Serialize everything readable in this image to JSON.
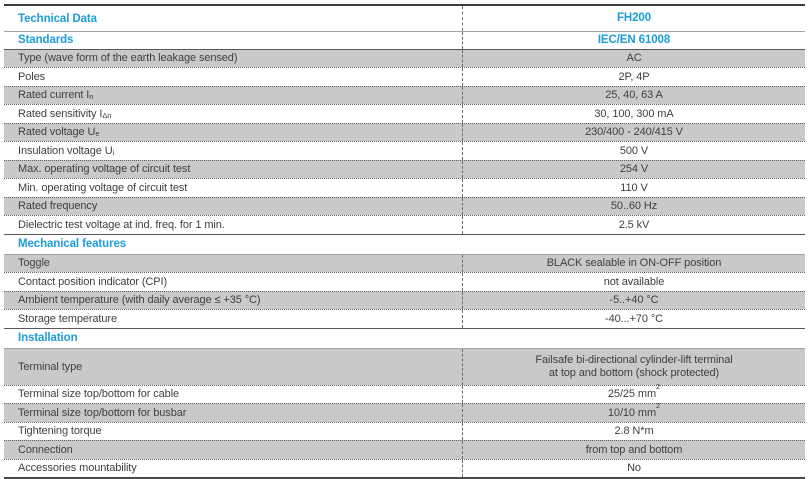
{
  "colors": {
    "accent_blue": "#1a9cd8",
    "row_gray": "#c9c9c9",
    "text": "#3f3f3f"
  },
  "table": {
    "rows": [
      {
        "kind": "title",
        "label": "Technical Data",
        "value": "FH200",
        "shade": "white"
      },
      {
        "kind": "title",
        "label": "Standards",
        "value": "IEC/EN 61008",
        "shade": "white"
      },
      {
        "kind": "data",
        "label": "Type (wave form of the earth leakage sensed)",
        "value": "AC",
        "shade": "gray"
      },
      {
        "kind": "data",
        "label": "Poles",
        "value": "2P, 4P",
        "shade": "white"
      },
      {
        "kind": "data",
        "label": "Rated current I",
        "label_sub": "n",
        "value": "25, 40, 63 A",
        "shade": "gray"
      },
      {
        "kind": "data",
        "label": "Rated sensitivity I",
        "label_sub": "Δn",
        "value": "30, 100, 300 mA",
        "shade": "white"
      },
      {
        "kind": "data",
        "label": "Rated voltage U",
        "label_sub": "e",
        "value": "230/400 - 240/415 V",
        "shade": "gray"
      },
      {
        "kind": "data",
        "label": "Insulation voltage U",
        "label_sub": "i",
        "value": "500 V",
        "shade": "white"
      },
      {
        "kind": "data",
        "label": "Max. operating voltage of circuit test",
        "value": "254 V",
        "shade": "gray"
      },
      {
        "kind": "data",
        "label": "Min. operating voltage of circuit test",
        "value": "110 V",
        "shade": "white"
      },
      {
        "kind": "data",
        "label": "Rated frequency",
        "value": "50..60 Hz",
        "shade": "gray"
      },
      {
        "kind": "data",
        "label": "Dielectric test voltage at ind. freq. for 1 min.",
        "value": "2.5 kV",
        "shade": "white"
      },
      {
        "kind": "section",
        "label": "Mechanical features",
        "shade": "white"
      },
      {
        "kind": "data",
        "label": "Toggle",
        "value": "BLACK sealable in ON-OFF position",
        "shade": "gray"
      },
      {
        "kind": "data",
        "label": "Contact position indicator (CPI)",
        "value": "not available",
        "shade": "white"
      },
      {
        "kind": "data",
        "label": "Ambient temperature (with daily average ≤ +35 °C)",
        "value": "-5..+40 °C",
        "shade": "gray"
      },
      {
        "kind": "data",
        "label": "Storage temperature",
        "value": "-40...+70 °C",
        "shade": "white"
      },
      {
        "kind": "section",
        "label": "Installation",
        "shade": "white"
      },
      {
        "kind": "data",
        "label": "Terminal type",
        "value": "Failsafe bi-directional cylinder-lift terminal",
        "value_line2": "at top and bottom (shock protected)",
        "shade": "gray",
        "tall": true
      },
      {
        "kind": "data",
        "label": "Terminal size top/bottom for cable",
        "value": "25/25 mm",
        "value_sup": "2",
        "shade": "white"
      },
      {
        "kind": "data",
        "label": "Terminal size top/bottom for busbar",
        "value": "10/10 mm",
        "value_sup": "2",
        "shade": "gray"
      },
      {
        "kind": "data",
        "label": "Tightening torque",
        "value": "2.8 N*m",
        "shade": "white"
      },
      {
        "kind": "data",
        "label": "Connection",
        "value": "from top and bottom",
        "shade": "gray"
      },
      {
        "kind": "data",
        "label": "Accessories mountability",
        "value": "No",
        "shade": "white"
      }
    ]
  }
}
